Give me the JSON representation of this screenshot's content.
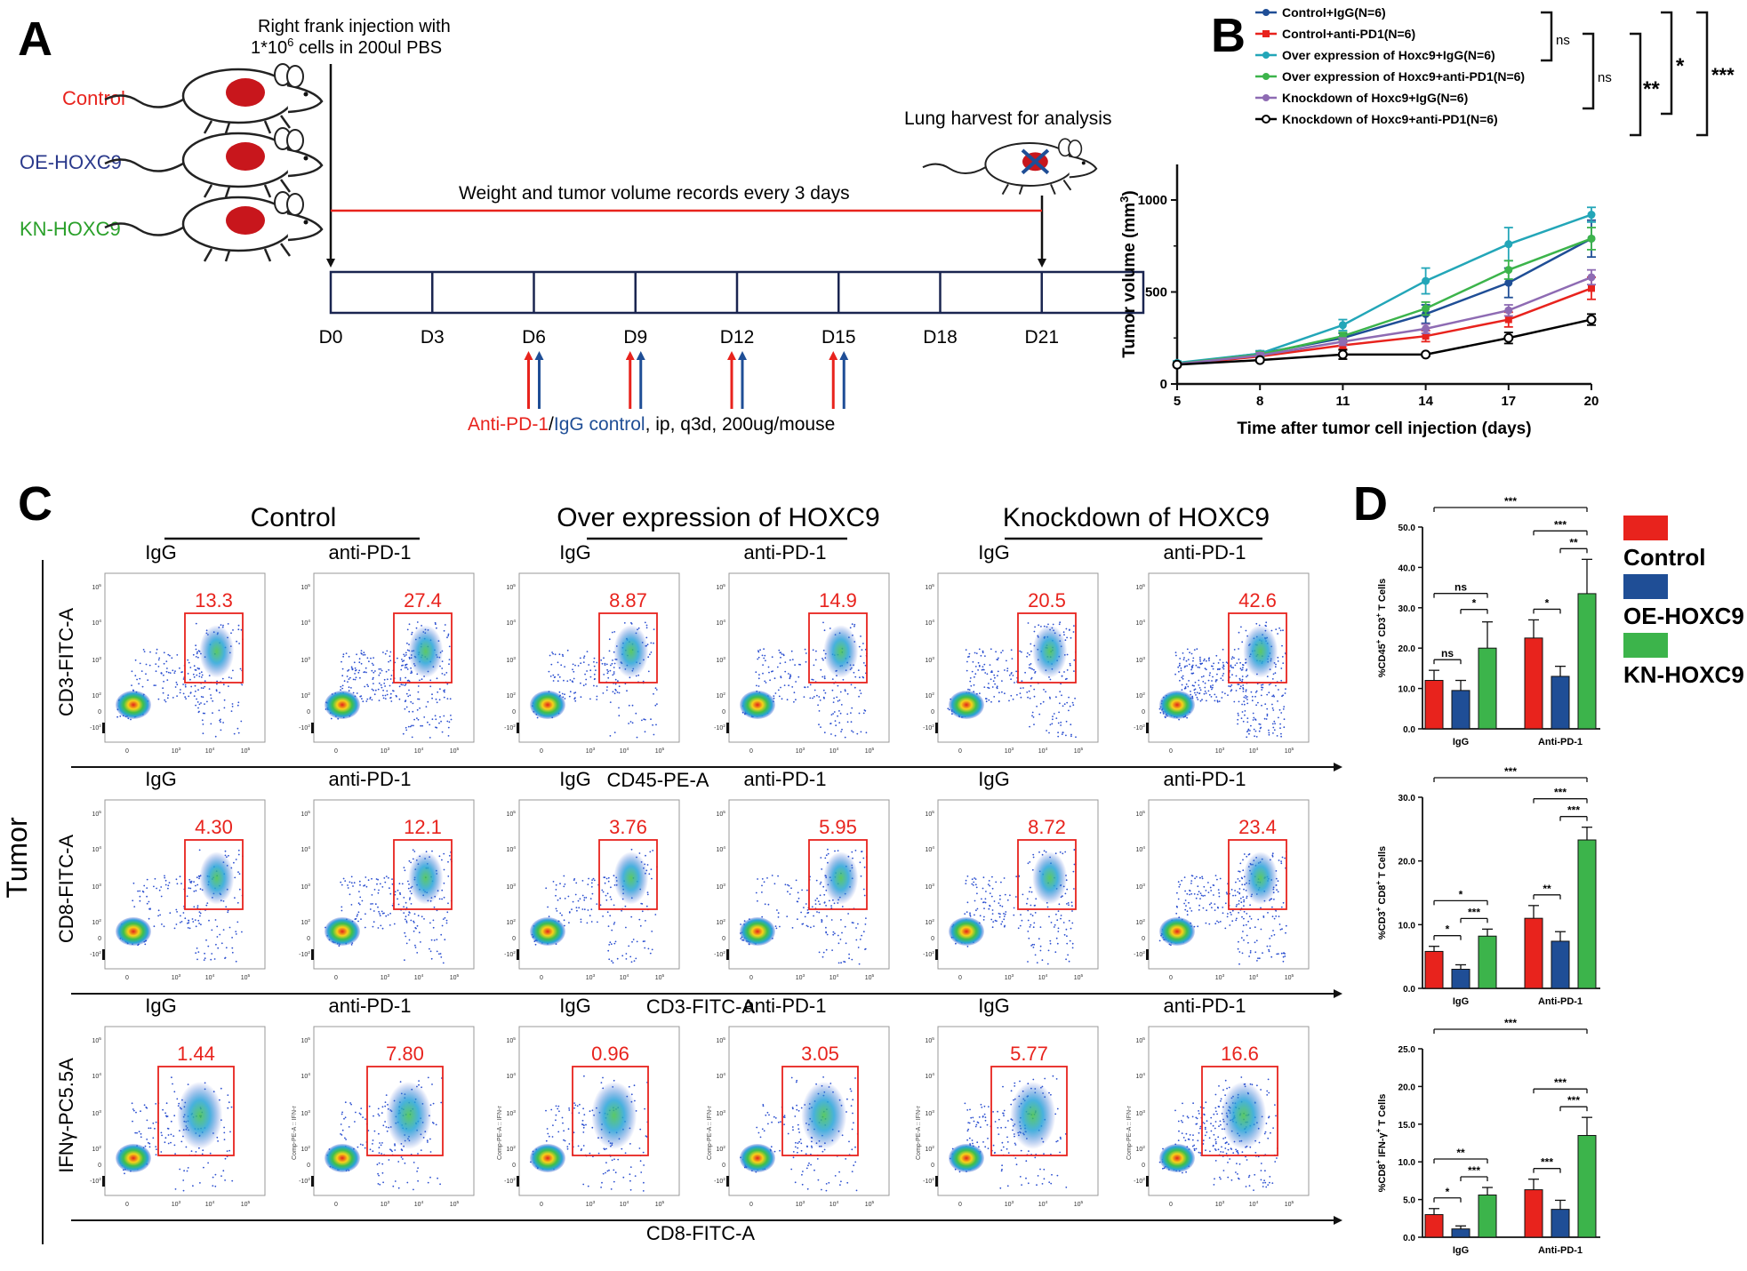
{
  "panel_letters": {
    "a": "A",
    "b": "B",
    "c": "C",
    "d": "D"
  },
  "panel_a": {
    "groups": [
      {
        "label": "Control",
        "color": "#e8231d"
      },
      {
        "label": "OE-HOXC9",
        "color": "#2b3a8c"
      },
      {
        "label": "KN-HOXC9",
        "color": "#2aa02a"
      }
    ],
    "injection_line1": "Right frank injection with",
    "injection_line2_pre": "1*10",
    "injection_line2_sup": "6",
    "injection_line2_post": " cells in 200ul PBS",
    "harvest_label": "Lung harvest for analysis",
    "records_label": "Weight and tumor volume records every 3 days",
    "days": [
      "D0",
      "D3",
      "D6",
      "D9",
      "D12",
      "D15",
      "D18",
      "D21"
    ],
    "treatment_anti": "Anti-PD-1",
    "treatment_slash": "/",
    "treatment_igg": "IgG control",
    "treatment_rest": ", ip, q3d, 200ug/mouse"
  },
  "panel_b": {
    "sig": {
      "ns1": "ns",
      "ns2": "ns",
      "s2": "**",
      "s1": "*",
      "s3": "***"
    }
  },
  "panel_c": {
    "group_titles": [
      "Control",
      "Over expression of HOXC9",
      "Knockdown of HOXC9"
    ],
    "side_label": "Tumor",
    "rows": [
      {
        "ylabel": "CD3-FITC-A",
        "xlabel": "CD45-PE-A",
        "treatments": [
          "IgG",
          "anti-PD-1",
          "IgG",
          "anti-PD-1",
          "IgG",
          "anti-PD-1"
        ],
        "values": [
          "13.3",
          "27.4",
          "8.87",
          "14.9",
          "20.5",
          "42.6"
        ]
      },
      {
        "ylabel": "CD8-FITC-A",
        "xlabel": "CD3-FITC-A",
        "treatments": [
          "IgG",
          "anti-PD-1",
          "IgG",
          "anti-PD-1",
          "IgG",
          "anti-PD-1"
        ],
        "values": [
          "4.30",
          "12.1",
          "3.76",
          "5.95",
          "8.72",
          "23.4"
        ]
      },
      {
        "ylabel": "IFNγ-PC5.5A",
        "xlabel": "CD8-FITC-A",
        "treatments": [
          "IgG",
          "anti-PD-1",
          "IgG",
          "anti-PD-1",
          "IgG",
          "anti-PD-1"
        ],
        "values": [
          "1.44",
          "7.80",
          "0.96",
          "3.05",
          "5.77",
          "16.6"
        ]
      }
    ],
    "comp_label": "Comp-PE-A :: IFN-r",
    "tick_labels": {
      "t0": "0",
      "t3": "10",
      "t3e": "3",
      "t4": "10",
      "t4e": "4",
      "t5": "10",
      "t5e": "5",
      "tn": "-10",
      "tne": "2",
      "t2": "10",
      "t2e": "2"
    }
  },
  "panel_d": {
    "legend": [
      {
        "label": "Control",
        "color": "#e8231d"
      },
      {
        "label": "OE-HOXC9",
        "color": "#1f4e96"
      },
      {
        "label": "KN-HOXC9",
        "color": "#3cb44b"
      }
    ]
  },
  "chart_data": [
    {
      "type": "line",
      "xlabel": "Time after tumor cell injection (days)",
      "ylabel": "Tumor volume (mm3)",
      "x": [
        5,
        8,
        11,
        14,
        17,
        20
      ],
      "xlim": [
        5,
        20
      ],
      "ylim": [
        0,
        1000
      ],
      "yticks": [
        0,
        500,
        1000
      ],
      "legend_position": "top",
      "series": [
        {
          "name": "Control+IgG(N=6)",
          "color": "#1f4e96",
          "marker": "filled-circle",
          "values": [
            110,
            165,
            250,
            380,
            550,
            790
          ],
          "err": [
            10,
            15,
            25,
            50,
            80,
            100
          ]
        },
        {
          "name": "Control+anti-PD1(N=6)",
          "color": "#e8231d",
          "marker": "filled-square",
          "values": [
            105,
            150,
            210,
            260,
            350,
            520
          ],
          "err": [
            10,
            15,
            20,
            30,
            40,
            60
          ]
        },
        {
          "name": "Over expression of Hoxc9+IgG(N=6)",
          "color": "#23a6b8",
          "marker": "filled-circle",
          "values": [
            115,
            165,
            320,
            560,
            760,
            920
          ],
          "err": [
            10,
            15,
            30,
            70,
            90,
            40
          ]
        },
        {
          "name": "Over expression of Hoxc9+anti-PD1(N=6)",
          "color": "#3cb44b",
          "marker": "filled-circle",
          "values": [
            110,
            160,
            260,
            410,
            620,
            790
          ],
          "err": [
            10,
            15,
            20,
            35,
            50,
            60
          ]
        },
        {
          "name": "Knockdown of Hoxc9+IgG(N=6)",
          "color": "#8e6bb3",
          "marker": "filled-circle",
          "values": [
            108,
            155,
            230,
            300,
            400,
            580
          ],
          "err": [
            10,
            15,
            20,
            25,
            30,
            40
          ]
        },
        {
          "name": "Knockdown of Hoxc9+anti-PD1(N=6)",
          "color": "#000000",
          "marker": "open-circle",
          "values": [
            105,
            130,
            160,
            160,
            250,
            350
          ],
          "err": [
            10,
            10,
            25,
            10,
            30,
            30
          ]
        }
      ],
      "xtick_labels": [
        "5",
        "8",
        "11",
        "14",
        "17",
        "20"
      ],
      "ytick_labels": [
        "0",
        "500",
        "1000"
      ]
    },
    {
      "type": "bar",
      "ylabel": "%CD45+ CD3+ T Cells",
      "categories": [
        "IgG",
        "Anti-PD-1"
      ],
      "ylim": [
        0,
        50
      ],
      "ytick_labels": [
        "0.0",
        "10.0",
        "20.0",
        "30.0",
        "40.0",
        "50.0"
      ],
      "series": [
        {
          "name": "Control",
          "values": [
            12,
            22.5
          ],
          "err": [
            2.5,
            4.5
          ]
        },
        {
          "name": "OE-HOXC9",
          "values": [
            9.5,
            13
          ],
          "err": [
            2.5,
            2.5
          ]
        },
        {
          "name": "KN-HOXC9",
          "values": [
            20,
            33.5
          ],
          "err": [
            6.5,
            8.5
          ]
        }
      ],
      "annotations": [
        {
          "from": 0,
          "to": 1,
          "label": "ns"
        },
        {
          "from": 0,
          "to": 2,
          "label": "ns"
        },
        {
          "from": 1,
          "to": 2,
          "label": "*"
        },
        {
          "from": 0,
          "to": 5,
          "label": "***"
        },
        {
          "from": 3,
          "to": 4,
          "label": "*"
        },
        {
          "from": 3,
          "to": 5,
          "label": "***"
        },
        {
          "from": 4,
          "to": 5,
          "label": "**"
        }
      ]
    },
    {
      "type": "bar",
      "ylabel": "%CD3+ CD8+ T Cells",
      "categories": [
        "IgG",
        "Anti-PD-1"
      ],
      "ylim": [
        0,
        30
      ],
      "ytick_labels": [
        "0.0",
        "10.0",
        "20.0",
        "30.0"
      ],
      "series": [
        {
          "name": "Control",
          "values": [
            5.8,
            11
          ],
          "err": [
            0.8,
            2
          ]
        },
        {
          "name": "OE-HOXC9",
          "values": [
            3,
            7.4
          ],
          "err": [
            0.7,
            1.5
          ]
        },
        {
          "name": "KN-HOXC9",
          "values": [
            8.2,
            23.3
          ],
          "err": [
            1.1,
            2
          ]
        }
      ],
      "annotations": [
        {
          "from": 0,
          "to": 1,
          "label": "*"
        },
        {
          "from": 0,
          "to": 2,
          "label": "*"
        },
        {
          "from": 1,
          "to": 2,
          "label": "***"
        },
        {
          "from": 0,
          "to": 5,
          "label": "***"
        },
        {
          "from": 3,
          "to": 4,
          "label": "**"
        },
        {
          "from": 3,
          "to": 5,
          "label": "***"
        },
        {
          "from": 4,
          "to": 5,
          "label": "***"
        }
      ]
    },
    {
      "type": "bar",
      "ylabel": "%CD8+ IFN-γ+ T Cells",
      "categories": [
        "IgG",
        "Anti-PD-1"
      ],
      "ylim": [
        0,
        25
      ],
      "ytick_labels": [
        "0.0",
        "5.0",
        "10.0",
        "15.0",
        "20.0",
        "25.0"
      ],
      "series": [
        {
          "name": "Control",
          "values": [
            3,
            6.3
          ],
          "err": [
            0.8,
            1.4
          ]
        },
        {
          "name": "OE-HOXC9",
          "values": [
            1.1,
            3.7
          ],
          "err": [
            0.4,
            1.2
          ]
        },
        {
          "name": "KN-HOXC9",
          "values": [
            5.6,
            13.5
          ],
          "err": [
            1,
            2.4
          ]
        }
      ],
      "annotations": [
        {
          "from": 0,
          "to": 1,
          "label": "*"
        },
        {
          "from": 0,
          "to": 2,
          "label": "**"
        },
        {
          "from": 1,
          "to": 2,
          "label": "***"
        },
        {
          "from": 0,
          "to": 5,
          "label": "***"
        },
        {
          "from": 3,
          "to": 4,
          "label": "***"
        },
        {
          "from": 3,
          "to": 5,
          "label": "***"
        },
        {
          "from": 4,
          "to": 5,
          "label": "***"
        }
      ]
    }
  ]
}
